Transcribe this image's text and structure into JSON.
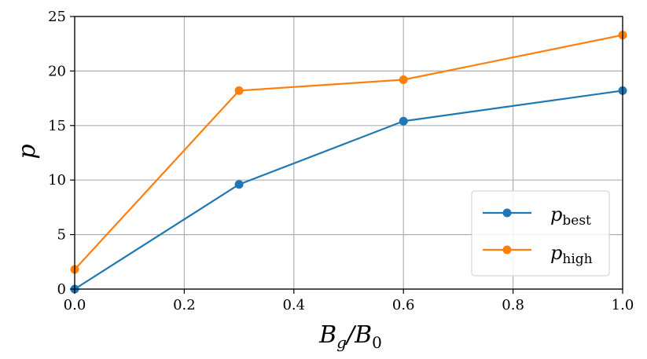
{
  "chart_data": {
    "type": "line",
    "x": [
      0.0,
      0.3,
      0.6,
      1.0
    ],
    "series": [
      {
        "name": "p",
        "name_sub": "best",
        "values": [
          0.0,
          9.6,
          15.4,
          18.2
        ],
        "color": "#1f77b4"
      },
      {
        "name": "p",
        "name_sub": "high",
        "values": [
          1.8,
          18.2,
          19.2,
          23.3
        ],
        "color": "#ff7f0e"
      }
    ],
    "xlabel": {
      "main": "B",
      "sub1": "g",
      "slash": "/B",
      "sub2": "0"
    },
    "ylabel": "p",
    "xlim": [
      0.0,
      1.0
    ],
    "ylim": [
      0,
      25
    ],
    "xticks": [
      0.0,
      0.2,
      0.4,
      0.6,
      0.8,
      1.0
    ],
    "xtick_labels": [
      "0.0",
      "0.2",
      "0.4",
      "0.6",
      "0.8",
      "1.0"
    ],
    "yticks": [
      0,
      5,
      10,
      15,
      20,
      25
    ],
    "ytick_labels": [
      "0",
      "5",
      "10",
      "15",
      "20",
      "25"
    ],
    "grid": true,
    "legend_position": "lower-right"
  }
}
